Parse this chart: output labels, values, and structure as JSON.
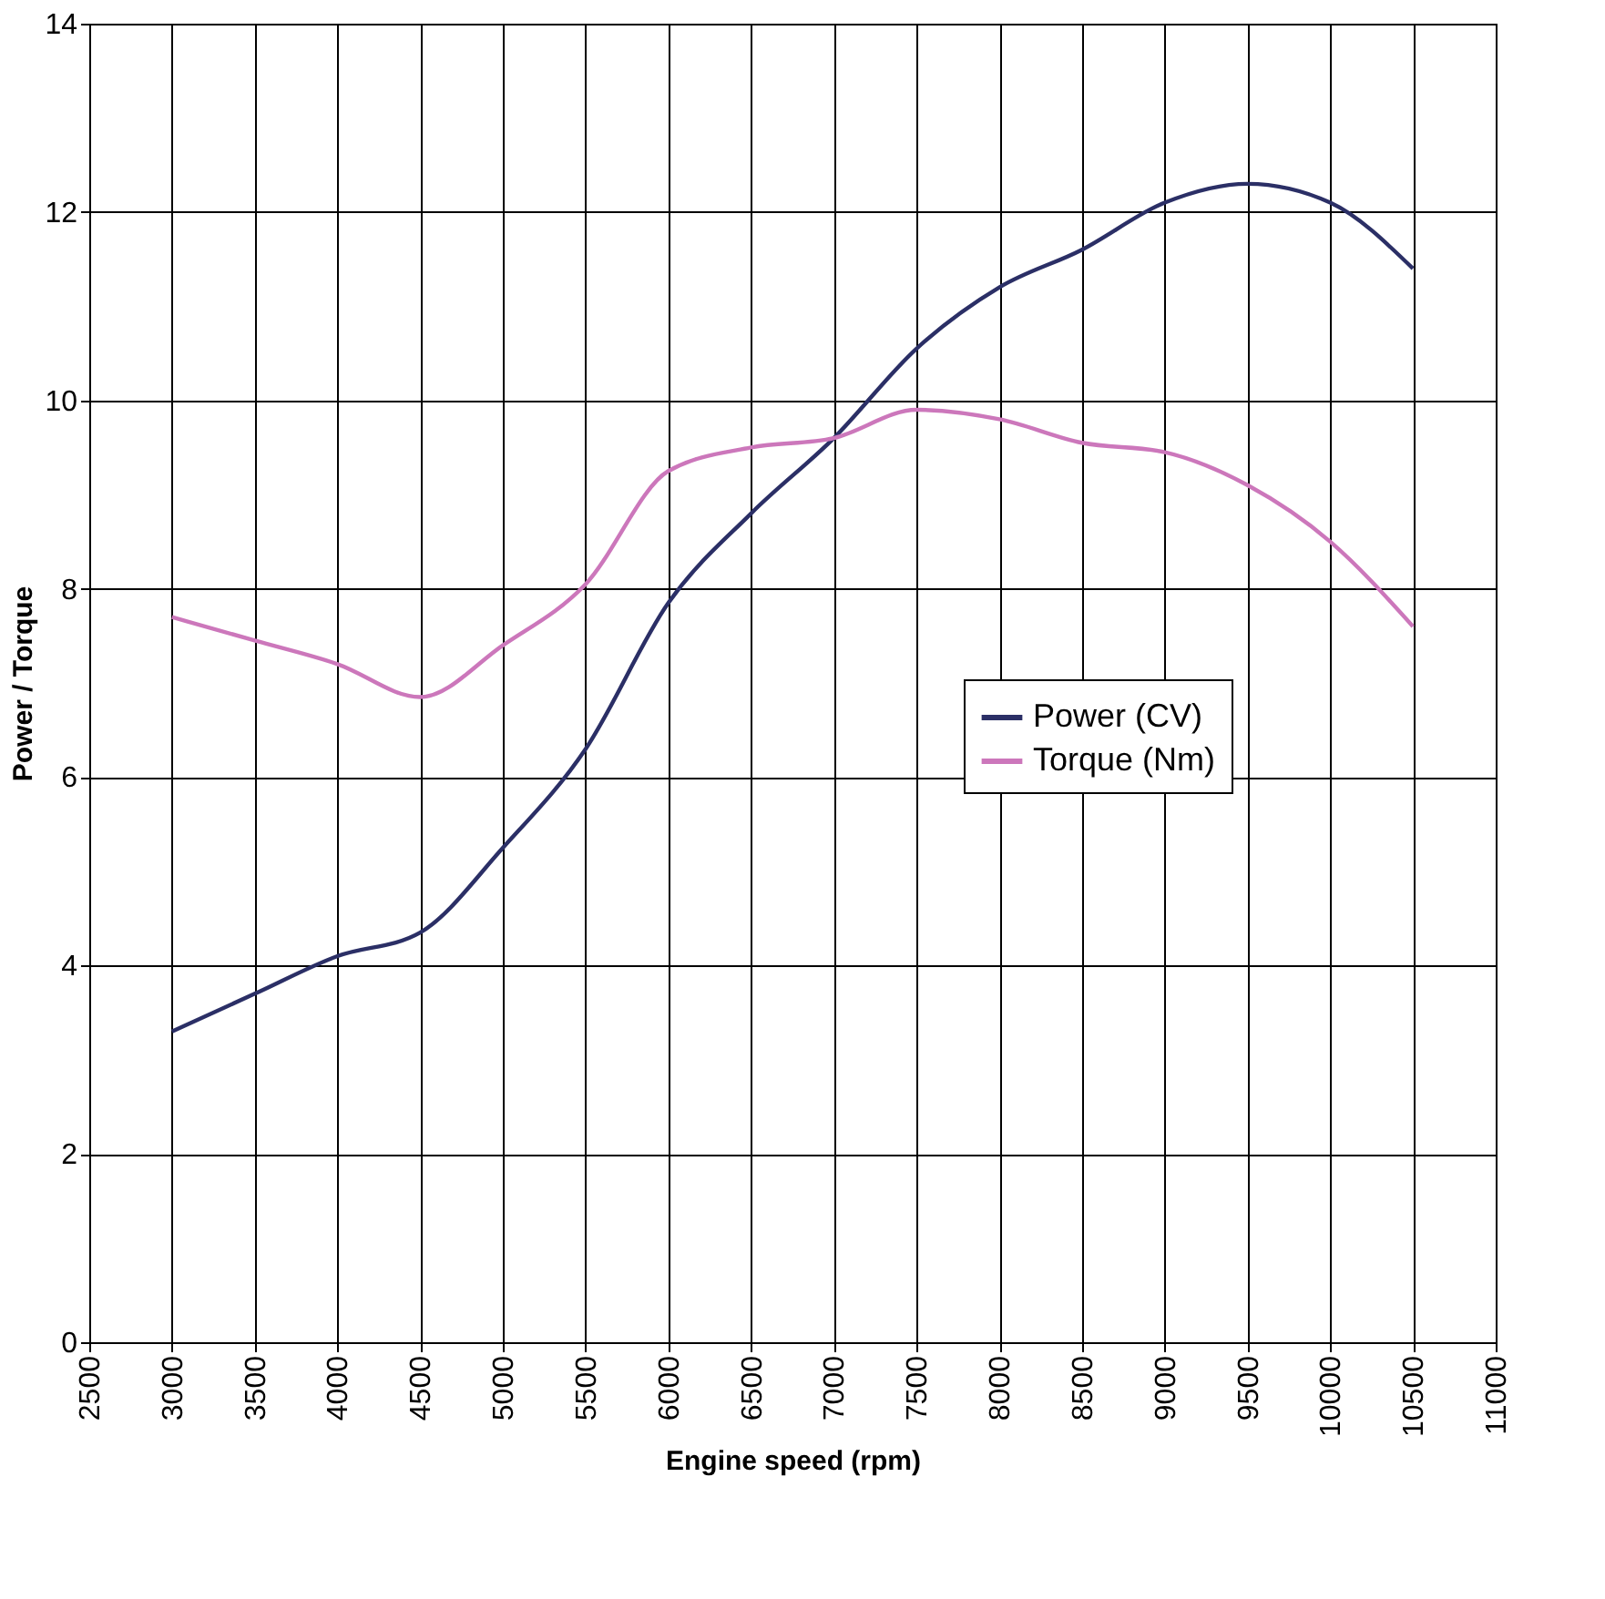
{
  "chart_data": {
    "type": "line",
    "xlabel": "Engine speed (rpm)",
    "ylabel": "Power / Torque",
    "x": [
      3000,
      3500,
      4000,
      4500,
      5000,
      5500,
      6000,
      6500,
      7000,
      7500,
      8000,
      8500,
      9000,
      9500,
      10000,
      10500
    ],
    "series": [
      {
        "name": "Power (CV)",
        "color": "#2b2f66",
        "values": [
          3.3,
          3.7,
          4.1,
          4.35,
          5.25,
          6.3,
          7.85,
          8.8,
          9.6,
          10.55,
          11.2,
          11.6,
          12.1,
          12.3,
          12.1,
          11.4
        ]
      },
      {
        "name": "Torque (Nm)",
        "color": "#cc77bb",
        "values": [
          7.7,
          7.45,
          7.2,
          6.85,
          7.4,
          8.05,
          9.25,
          9.5,
          9.6,
          9.9,
          9.8,
          9.55,
          9.45,
          9.1,
          8.5,
          7.6
        ]
      }
    ],
    "xlim": [
      2500,
      11000
    ],
    "xticks": [
      2500,
      3000,
      3500,
      4000,
      4500,
      5000,
      5500,
      6000,
      6500,
      7000,
      7500,
      8000,
      8500,
      9000,
      9500,
      10000,
      10500,
      11000
    ],
    "ylim": [
      0,
      14
    ],
    "yticks": [
      0,
      2,
      4,
      6,
      8,
      10,
      12,
      14
    ],
    "grid": true,
    "legend": "right",
    "marker": "none",
    "line_style": "solid"
  }
}
